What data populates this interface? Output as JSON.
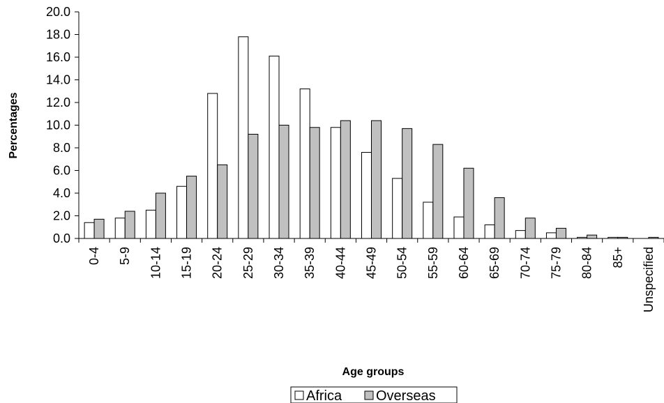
{
  "chart_data": {
    "type": "bar",
    "title": "",
    "xlabel": "Age groups",
    "ylabel": "Percentages",
    "ylim": [
      0,
      20
    ],
    "ytick_step": 2,
    "ytick_format": "0.0",
    "categories": [
      "0-4",
      "5-9",
      "10-14",
      "15-19",
      "20-24",
      "25-29",
      "30-34",
      "35-39",
      "40-44",
      "45-49",
      "50-54",
      "55-59",
      "60-64",
      "65-69",
      "70-74",
      "75-79",
      "80-84",
      "85+",
      "Unspecified"
    ],
    "series": [
      {
        "name": "Africa",
        "color": "#ffffff",
        "values": [
          1.4,
          1.8,
          2.5,
          4.6,
          12.8,
          17.8,
          16.1,
          13.2,
          9.8,
          7.6,
          5.3,
          3.2,
          1.9,
          1.2,
          0.7,
          0.5,
          0.1,
          0.1,
          0.0
        ]
      },
      {
        "name": "Overseas",
        "color": "#c0c0c0",
        "values": [
          1.7,
          2.4,
          4.0,
          5.5,
          6.5,
          9.2,
          10.0,
          9.8,
          10.4,
          10.4,
          9.7,
          8.3,
          6.2,
          3.6,
          1.8,
          0.9,
          0.3,
          0.1,
          0.1
        ]
      }
    ],
    "grid": false,
    "legend_position": "bottom-center"
  }
}
